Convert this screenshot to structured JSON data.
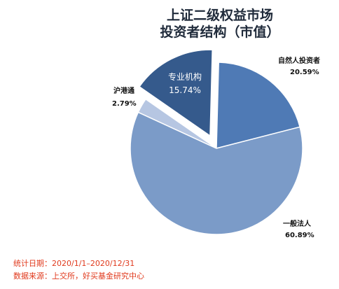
{
  "chart_data": {
    "type": "pie",
    "title_lines": [
      "上证二级权益市场",
      "投资者结构（市值）"
    ],
    "slices": [
      {
        "name": "自然人投资者",
        "value": 20.59,
        "value_label": "20.59%",
        "color": "#4f7ab5",
        "exploded": false
      },
      {
        "name": "一般法人",
        "value": 60.89,
        "value_label": "60.89%",
        "color": "#7b9bc8",
        "exploded": false
      },
      {
        "name": "沪港通",
        "value": 2.79,
        "value_label": "2.79%",
        "color": "#b6c6e2",
        "exploded": false
      },
      {
        "name": "专业机构",
        "value": 15.74,
        "value_label": "15.74%",
        "color": "#355a8c",
        "exploded": true
      }
    ]
  },
  "footer": {
    "stat_date": "统计日期：2020/1/1–2020/12/31",
    "source": "数据来源：上交所，好买基金研究中心"
  }
}
